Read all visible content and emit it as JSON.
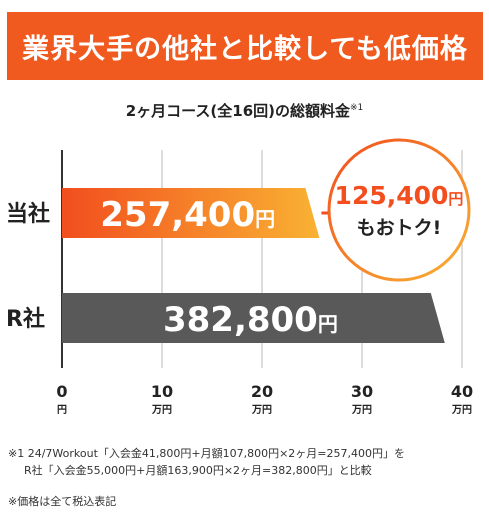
{
  "banner": {
    "title": "業界大手の他社と比較しても低価格"
  },
  "chart_data": {
    "type": "bar",
    "orientation": "horizontal",
    "title": "2ヶ月コース(全16回)の総額料金",
    "title_note_mark": "※1",
    "categories": [
      "当社",
      "R社"
    ],
    "values": [
      257400,
      382800
    ],
    "value_labels": [
      "257,400",
      "382,800"
    ],
    "value_unit": "円",
    "xlim": [
      0,
      400000
    ],
    "ticks": [
      {
        "value": 0,
        "label": "0",
        "unit": "円"
      },
      {
        "value": 100000,
        "label": "10",
        "unit": "万円"
      },
      {
        "value": 200000,
        "label": "20",
        "unit": "万円"
      },
      {
        "value": 300000,
        "label": "30",
        "unit": "万円"
      },
      {
        "value": 400000,
        "label": "40",
        "unit": "万円"
      }
    ],
    "grid": true,
    "colors": {
      "own": [
        "#f24e1e",
        "#f9b233"
      ],
      "competitor": "#595959",
      "accent": "#f24e1e"
    },
    "callout": {
      "amount": "125,400",
      "unit": "円",
      "text": "もおトク!"
    }
  },
  "notes": {
    "line1": "※1 24/7Workout「入会金41,800円+月額107,800円×2ヶ月=257,400円」を",
    "line2": "R社「入会金55,000円+月額163,900円×2ヶ月=382,800円」と比較",
    "line3": "※価格は全て税込表記"
  }
}
